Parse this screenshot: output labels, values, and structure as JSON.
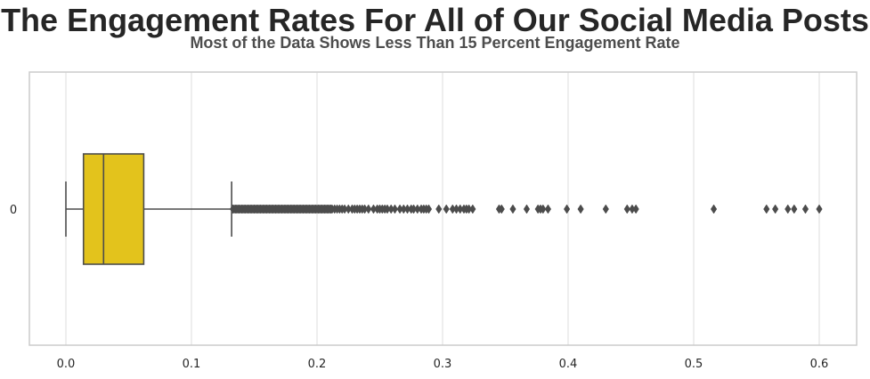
{
  "chart_data": {
    "type": "boxplot",
    "title": "The Engagement Rates For All of Our Social Media Posts",
    "subtitle": "Most of the Data Shows Less Than 15 Percent Engagement Rate",
    "xlabel": "",
    "ylabel": "",
    "orientation": "horizontal",
    "xlim": [
      -0.03,
      0.63
    ],
    "x_ticks": [
      "0.0",
      "0.1",
      "0.2",
      "0.3",
      "0.4",
      "0.5",
      "0.6"
    ],
    "x_tick_values": [
      0.0,
      0.1,
      0.2,
      0.3,
      0.4,
      0.5,
      0.6
    ],
    "categories": [
      "0"
    ],
    "grid": true,
    "box": {
      "whisker_low": 0.0,
      "q1": 0.014,
      "median": 0.03,
      "q3": 0.062,
      "whisker_high": 0.132,
      "color": "#e3c31c",
      "line_color": "#4c4c4c"
    },
    "outliers": [
      0.133,
      0.134,
      0.135,
      0.136,
      0.137,
      0.138,
      0.139,
      0.14,
      0.141,
      0.142,
      0.143,
      0.144,
      0.145,
      0.146,
      0.147,
      0.148,
      0.149,
      0.15,
      0.151,
      0.152,
      0.153,
      0.154,
      0.155,
      0.156,
      0.157,
      0.158,
      0.159,
      0.16,
      0.161,
      0.162,
      0.163,
      0.164,
      0.165,
      0.166,
      0.167,
      0.168,
      0.169,
      0.17,
      0.171,
      0.172,
      0.173,
      0.174,
      0.175,
      0.176,
      0.177,
      0.178,
      0.179,
      0.18,
      0.181,
      0.182,
      0.183,
      0.184,
      0.185,
      0.186,
      0.187,
      0.188,
      0.189,
      0.19,
      0.191,
      0.192,
      0.193,
      0.194,
      0.195,
      0.196,
      0.197,
      0.198,
      0.199,
      0.2,
      0.201,
      0.202,
      0.203,
      0.204,
      0.205,
      0.206,
      0.207,
      0.208,
      0.209,
      0.21,
      0.211,
      0.212,
      0.214,
      0.216,
      0.218,
      0.22,
      0.222,
      0.225,
      0.228,
      0.23,
      0.232,
      0.234,
      0.236,
      0.238,
      0.241,
      0.245,
      0.248,
      0.25,
      0.252,
      0.254,
      0.256,
      0.259,
      0.262,
      0.266,
      0.269,
      0.272,
      0.275,
      0.277,
      0.28,
      0.283,
      0.285,
      0.287,
      0.289,
      0.297,
      0.303,
      0.308,
      0.311,
      0.314,
      0.317,
      0.319,
      0.321,
      0.324,
      0.345,
      0.347,
      0.356,
      0.367,
      0.376,
      0.378,
      0.38,
      0.384,
      0.399,
      0.41,
      0.43,
      0.447,
      0.451,
      0.454,
      0.516,
      0.558,
      0.565,
      0.575,
      0.58,
      0.589,
      0.6
    ],
    "colors": {
      "box_fill": "#e3c31c",
      "lines": "#4c4c4c",
      "grid": "#dcdcdc",
      "frame": "#cccccc"
    }
  }
}
